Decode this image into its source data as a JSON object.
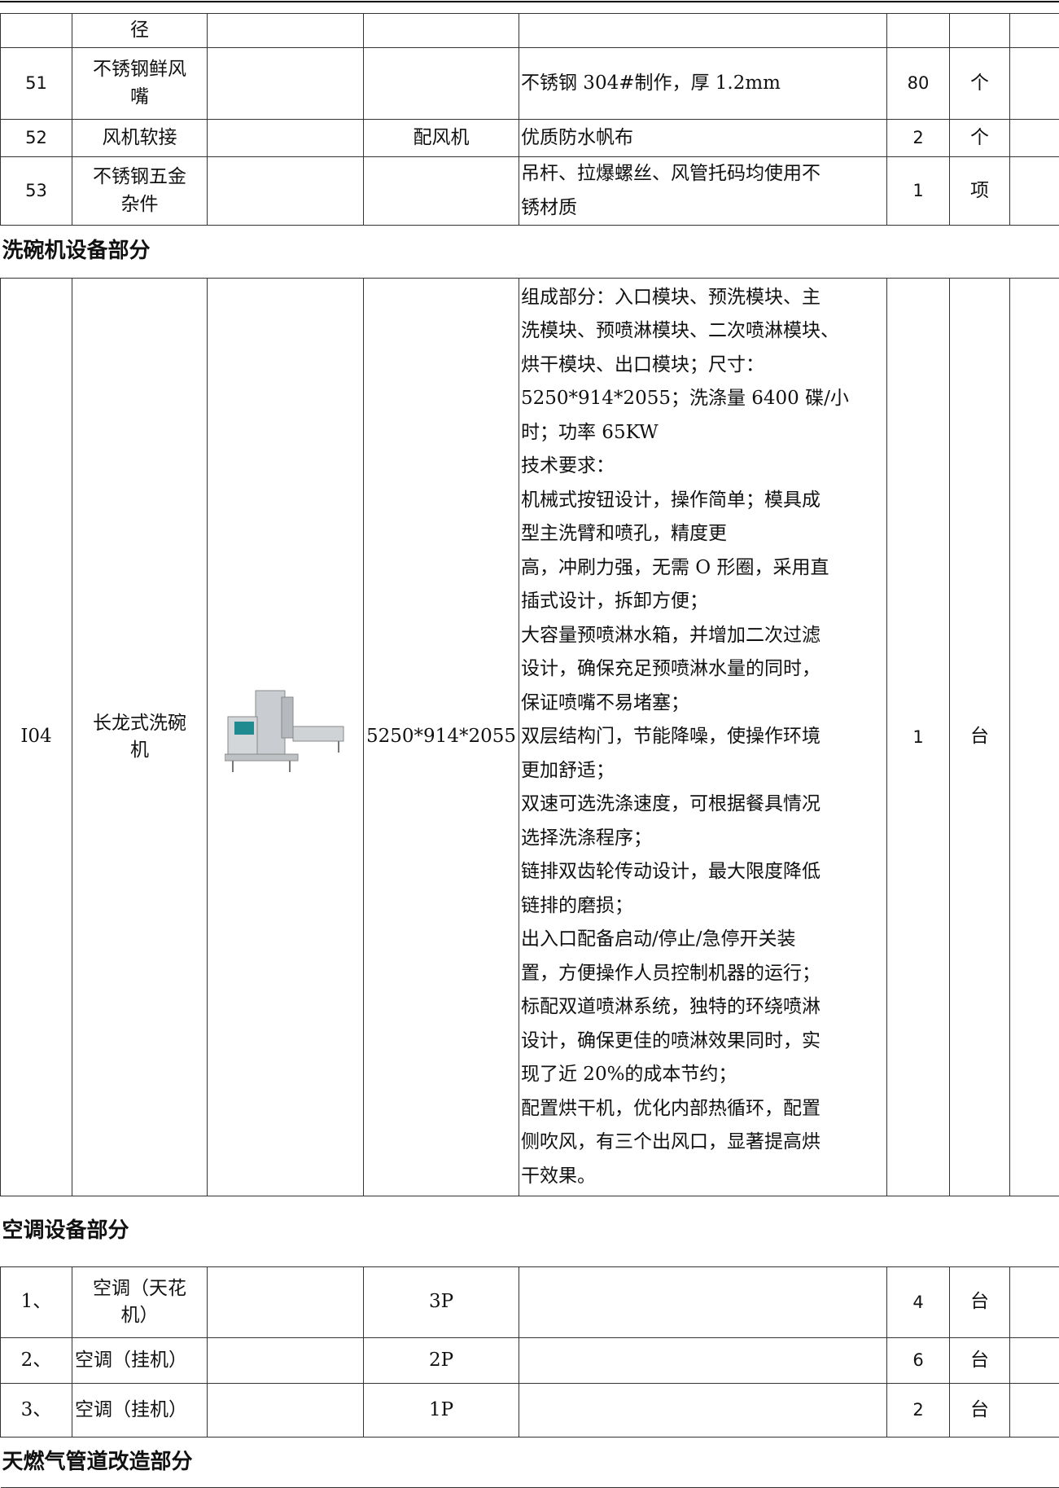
{
  "table": {
    "rows": [
      {
        "kind": "item",
        "name": [
          "径"
        ]
      },
      {
        "kind": "item",
        "no": "51",
        "name": [
          "不锈钢鲜风",
          "嘴"
        ],
        "desc": [
          "不锈钢 304#制作，厚 1.2mm"
        ],
        "qty": "80",
        "unit": "个"
      },
      {
        "kind": "item",
        "no": "52",
        "name": [
          "风机软接"
        ],
        "spec": "配风机",
        "desc": [
          "优质防水帆布"
        ],
        "qty": "2",
        "unit": "个"
      },
      {
        "kind": "item",
        "no": "53",
        "name": [
          "不锈钢五金",
          "杂件"
        ],
        "desc": [
          "吊杆、拉爆螺丝、风管托码均使用不",
          "锈材质"
        ],
        "qty": "1",
        "unit": "项"
      },
      {
        "kind": "section",
        "title": "洗碗机设备部分"
      },
      {
        "kind": "item",
        "no": "I04",
        "name": [
          "长龙式洗碗",
          "机"
        ],
        "image": true,
        "spec": "5250*914*2055",
        "desc": [
          "组成部分：入口模块、预洗模块、主",
          "洗模块、预喷淋模块、二次喷淋模块、",
          "烘干模块、出口模块；尺寸：",
          "5250*914*2055；洗涤量 6400 碟/小",
          "时；功率 65KW",
          "技术要求：",
          "机械式按钮设计，操作简单；模具成",
          "型主洗臂和喷孔，精度更",
          "高，冲刷力强，无需 O 形圈，采用直",
          "插式设计，拆卸方便；",
          "大容量预喷淋水箱，并增加二次过滤",
          "设计，确保充足预喷淋水量的同时，",
          "保证喷嘴不易堵塞；",
          "双层结构门，节能降噪，使操作环境",
          "更加舒适；",
          "双速可选洗涤速度，可根据餐具情况",
          "选择洗涤程序；",
          "链排双齿轮传动设计，最大限度降低",
          "链排的磨损；",
          "出入口配备启动/停止/急停开关装",
          "置，方便操作人员控制机器的运行；",
          "标配双道喷淋系统，独特的环绕喷淋",
          "设计，确保更佳的喷淋效果同时，实",
          "现了近 20%的成本节约；",
          "配置烘干机，优化内部热循环，配置",
          "侧吹风，有三个出风口，显著提高烘",
          "干效果。"
        ],
        "qty": "1",
        "unit": "台"
      },
      {
        "kind": "section",
        "title": "空调设备部分"
      },
      {
        "kind": "item",
        "no": "1、",
        "name": [
          "空调（天花",
          "机）"
        ],
        "spec": "3P",
        "qty": "4",
        "unit": "台"
      },
      {
        "kind": "item",
        "no": "2、",
        "name": [
          "空调（挂机）"
        ],
        "spec": "2P",
        "qty": "6",
        "unit": "台"
      },
      {
        "kind": "item",
        "no": "3、",
        "name": [
          "空调（挂机）"
        ],
        "spec": "1P",
        "qty": "2",
        "unit": "台"
      },
      {
        "kind": "section",
        "title": "天燃气管道改造部分"
      }
    ]
  }
}
